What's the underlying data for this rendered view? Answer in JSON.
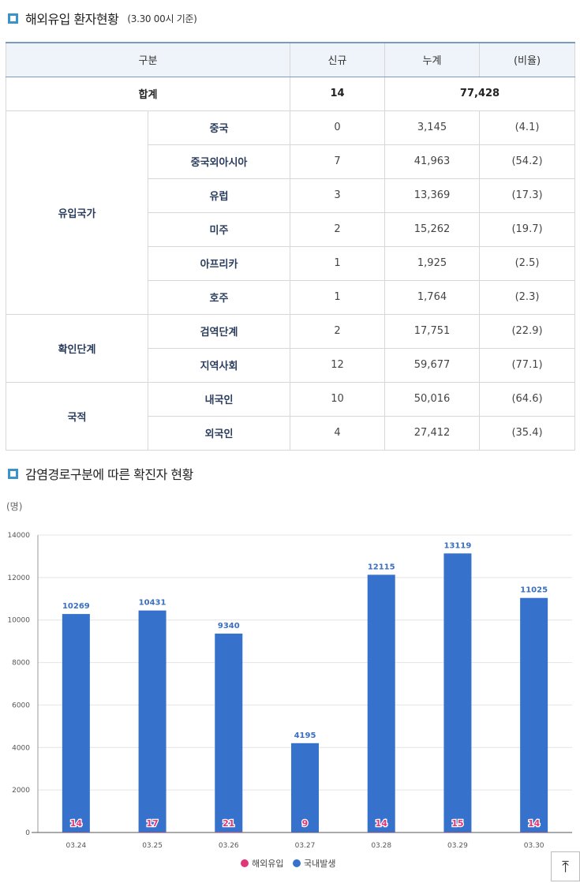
{
  "section1": {
    "title": "해외유입 환자현황",
    "note": "(3.30 00시 기준)"
  },
  "table": {
    "headers": [
      "구분",
      "신규",
      "누계",
      "(비율)"
    ],
    "total": {
      "label": "합계",
      "new": "14",
      "cumulative": "77,428"
    },
    "groups": [
      {
        "label": "유입국가",
        "rows": [
          {
            "label": "중국",
            "new": "0",
            "cumulative": "3,145",
            "ratio": "(4.1)"
          },
          {
            "label": "중국외아시아",
            "new": "7",
            "cumulative": "41,963",
            "ratio": "(54.2)"
          },
          {
            "label": "유럽",
            "new": "3",
            "cumulative": "13,369",
            "ratio": "(17.3)"
          },
          {
            "label": "미주",
            "new": "2",
            "cumulative": "15,262",
            "ratio": "(19.7)"
          },
          {
            "label": "아프리카",
            "new": "1",
            "cumulative": "1,925",
            "ratio": "(2.5)"
          },
          {
            "label": "호주",
            "new": "1",
            "cumulative": "1,764",
            "ratio": "(2.3)"
          }
        ]
      },
      {
        "label": "확인단계",
        "rows": [
          {
            "label": "검역단계",
            "new": "2",
            "cumulative": "17,751",
            "ratio": "(22.9)"
          },
          {
            "label": "지역사회",
            "new": "12",
            "cumulative": "59,677",
            "ratio": "(77.1)"
          }
        ]
      },
      {
        "label": "국적",
        "rows": [
          {
            "label": "내국인",
            "new": "10",
            "cumulative": "50,016",
            "ratio": "(64.6)"
          },
          {
            "label": "외국인",
            "new": "4",
            "cumulative": "27,412",
            "ratio": "(35.4)"
          }
        ]
      }
    ]
  },
  "section2": {
    "title": "감염경로구분에 따른 확진자 현황"
  },
  "chart_data": {
    "type": "bar",
    "stacked": true,
    "ylabel": "(명)",
    "ylim": [
      0,
      14000
    ],
    "yticks": [
      0,
      2000,
      4000,
      6000,
      8000,
      10000,
      12000,
      14000
    ],
    "categories": [
      "03.24",
      "03.25",
      "03.26",
      "03.27",
      "03.28",
      "03.29",
      "03.30"
    ],
    "series": [
      {
        "name": "해외유입",
        "color": "#e0357a",
        "values": [
          14,
          17,
          21,
          9,
          14,
          15,
          14
        ]
      },
      {
        "name": "국내발생",
        "color": "#3672cc",
        "values": [
          10269,
          10431,
          9340,
          4195,
          12115,
          13119,
          11025
        ]
      }
    ],
    "grid": true,
    "legend": "bottom"
  },
  "colors": {
    "accent": "#3b94c9",
    "domestic": "#3672cc",
    "imported": "#e0357a"
  },
  "top_button": {
    "icon": "arrow-up-icon",
    "glyph": "⤒"
  }
}
